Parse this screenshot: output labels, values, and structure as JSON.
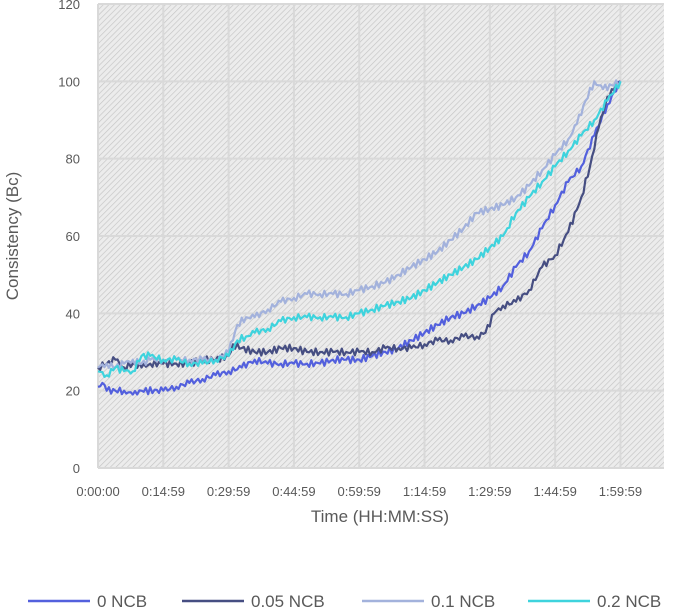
{
  "chart_data": {
    "type": "line",
    "title": "",
    "xlabel": "Time (HH:MM:SS)",
    "ylabel": "Consistency (Bc)",
    "ylim": [
      0,
      120
    ],
    "yticks": [
      "0",
      "20",
      "40",
      "60",
      "80",
      "100",
      "120"
    ],
    "xlim": [
      0,
      130
    ],
    "xticks": [
      {
        "v": 0,
        "label": "0:00:00"
      },
      {
        "v": 15,
        "label": "0:14:59"
      },
      {
        "v": 30,
        "label": "0:29:59"
      },
      {
        "v": 45,
        "label": "0:44:59"
      },
      {
        "v": 60,
        "label": "0:59:59"
      },
      {
        "v": 75,
        "label": "1:14:59"
      },
      {
        "v": 90,
        "label": "1:29:59"
      },
      {
        "v": 105,
        "label": "1:44:59"
      },
      {
        "v": 120,
        "label": "1:59:59"
      }
    ],
    "grid": true,
    "legend_position": "bottom",
    "series": [
      {
        "name": "0 NCB",
        "color": "#5360dd",
        "points": [
          [
            0,
            21
          ],
          [
            1,
            22
          ],
          [
            2,
            20
          ],
          [
            4,
            20
          ],
          [
            6,
            20
          ],
          [
            8,
            19
          ],
          [
            9,
            19
          ],
          [
            10,
            20
          ],
          [
            15,
            20
          ],
          [
            18,
            21
          ],
          [
            21,
            22
          ],
          [
            24,
            23
          ],
          [
            27,
            24
          ],
          [
            30,
            25
          ],
          [
            33,
            26
          ],
          [
            36,
            28
          ],
          [
            39,
            27
          ],
          [
            42,
            27
          ],
          [
            45,
            27
          ],
          [
            48,
            27
          ],
          [
            51,
            27
          ],
          [
            54,
            28
          ],
          [
            57,
            28
          ],
          [
            60,
            28
          ],
          [
            63,
            29
          ],
          [
            66,
            30
          ],
          [
            69,
            31
          ],
          [
            72,
            33
          ],
          [
            75,
            35
          ],
          [
            78,
            37
          ],
          [
            81,
            39
          ],
          [
            84,
            40
          ],
          [
            87,
            42
          ],
          [
            90,
            44
          ],
          [
            93,
            47
          ],
          [
            96,
            52
          ],
          [
            99,
            56
          ],
          [
            102,
            62
          ],
          [
            105,
            68
          ],
          [
            108,
            74
          ],
          [
            111,
            78
          ],
          [
            114,
            86
          ],
          [
            117,
            94
          ],
          [
            120,
            100
          ]
        ]
      },
      {
        "name": "0.05 NCB",
        "color": "#464e82",
        "points": [
          [
            0,
            26
          ],
          [
            2,
            27
          ],
          [
            4,
            28
          ],
          [
            6,
            26
          ],
          [
            8,
            27
          ],
          [
            10,
            26
          ],
          [
            12,
            27
          ],
          [
            15,
            27
          ],
          [
            18,
            27
          ],
          [
            21,
            27
          ],
          [
            24,
            28
          ],
          [
            27,
            28
          ],
          [
            30,
            29
          ],
          [
            31,
            32
          ],
          [
            33,
            31
          ],
          [
            36,
            30
          ],
          [
            39,
            30
          ],
          [
            42,
            31
          ],
          [
            45,
            31
          ],
          [
            48,
            30
          ],
          [
            51,
            30
          ],
          [
            54,
            30
          ],
          [
            57,
            30
          ],
          [
            60,
            30
          ],
          [
            63,
            30
          ],
          [
            66,
            31
          ],
          [
            69,
            31
          ],
          [
            72,
            31
          ],
          [
            75,
            32
          ],
          [
            78,
            33
          ],
          [
            81,
            33
          ],
          [
            84,
            34
          ],
          [
            87,
            34
          ],
          [
            89,
            35
          ],
          [
            91,
            40
          ],
          [
            93,
            42
          ],
          [
            96,
            43
          ],
          [
            99,
            46
          ],
          [
            102,
            52
          ],
          [
            105,
            55
          ],
          [
            108,
            61
          ],
          [
            111,
            70
          ],
          [
            113,
            78
          ],
          [
            115,
            88
          ],
          [
            117,
            96
          ],
          [
            118,
            98
          ],
          [
            120,
            100
          ]
        ]
      },
      {
        "name": "0.1 NCB",
        "color": "#a3b2dc",
        "points": [
          [
            0,
            26
          ],
          [
            2,
            27
          ],
          [
            4,
            26
          ],
          [
            6,
            27
          ],
          [
            8,
            28
          ],
          [
            10,
            27
          ],
          [
            12,
            28
          ],
          [
            15,
            28
          ],
          [
            18,
            28
          ],
          [
            21,
            28
          ],
          [
            24,
            28
          ],
          [
            27,
            28
          ],
          [
            30,
            30
          ],
          [
            32,
            37
          ],
          [
            34,
            39
          ],
          [
            36,
            39
          ],
          [
            39,
            41
          ],
          [
            42,
            43
          ],
          [
            45,
            44
          ],
          [
            48,
            45
          ],
          [
            51,
            45
          ],
          [
            54,
            45
          ],
          [
            57,
            45
          ],
          [
            60,
            46
          ],
          [
            63,
            47
          ],
          [
            66,
            48
          ],
          [
            69,
            50
          ],
          [
            72,
            52
          ],
          [
            75,
            54
          ],
          [
            78,
            56
          ],
          [
            81,
            59
          ],
          [
            84,
            62
          ],
          [
            87,
            66
          ],
          [
            90,
            67
          ],
          [
            93,
            68
          ],
          [
            96,
            70
          ],
          [
            99,
            73
          ],
          [
            102,
            77
          ],
          [
            105,
            81
          ],
          [
            108,
            85
          ],
          [
            110,
            89
          ],
          [
            112,
            95
          ],
          [
            114,
            100
          ],
          [
            116,
            98
          ],
          [
            118,
            99
          ],
          [
            120,
            100
          ]
        ]
      },
      {
        "name": "0.2 NCB",
        "color": "#3ed3dd",
        "points": [
          [
            0,
            25
          ],
          [
            2,
            24
          ],
          [
            4,
            26
          ],
          [
            6,
            25
          ],
          [
            8,
            25
          ],
          [
            10,
            29
          ],
          [
            12,
            29
          ],
          [
            15,
            28
          ],
          [
            18,
            28
          ],
          [
            21,
            27
          ],
          [
            24,
            27
          ],
          [
            27,
            28
          ],
          [
            30,
            29
          ],
          [
            32,
            33
          ],
          [
            34,
            34
          ],
          [
            36,
            35
          ],
          [
            39,
            36
          ],
          [
            42,
            38
          ],
          [
            45,
            39
          ],
          [
            48,
            39
          ],
          [
            51,
            39
          ],
          [
            54,
            39
          ],
          [
            57,
            39
          ],
          [
            60,
            40
          ],
          [
            63,
            41
          ],
          [
            66,
            42
          ],
          [
            69,
            43
          ],
          [
            72,
            44
          ],
          [
            75,
            46
          ],
          [
            78,
            48
          ],
          [
            81,
            50
          ],
          [
            84,
            52
          ],
          [
            87,
            54
          ],
          [
            90,
            57
          ],
          [
            93,
            60
          ],
          [
            94,
            62
          ],
          [
            96,
            66
          ],
          [
            99,
            70
          ],
          [
            102,
            74
          ],
          [
            105,
            78
          ],
          [
            108,
            82
          ],
          [
            111,
            86
          ],
          [
            114,
            90
          ],
          [
            117,
            95
          ],
          [
            120,
            100
          ]
        ]
      }
    ]
  }
}
